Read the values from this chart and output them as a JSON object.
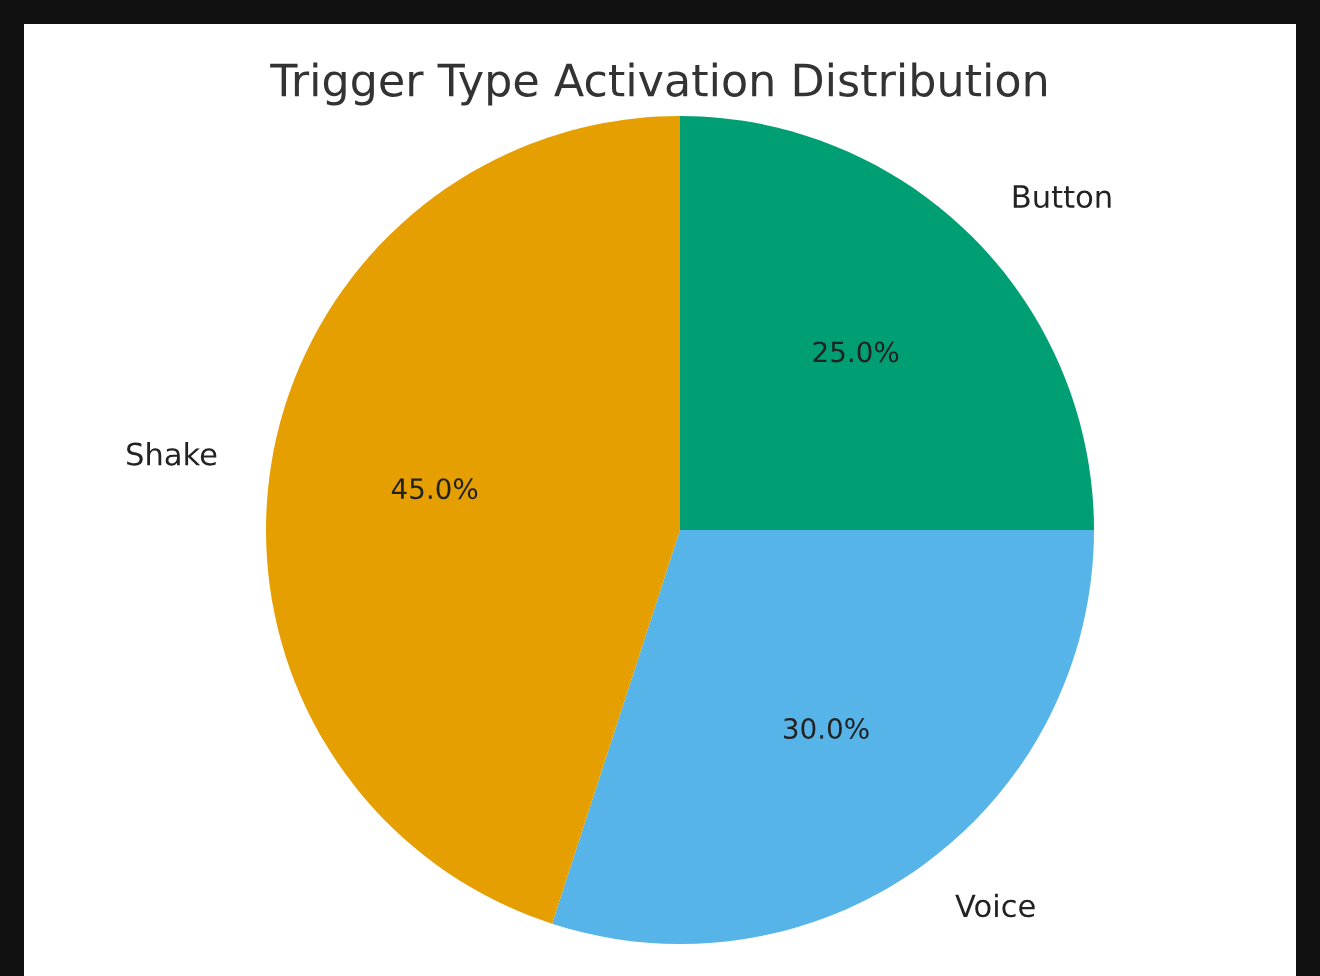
{
  "chart_data": {
    "type": "pie",
    "title": "Trigger Type Activation Distribution",
    "categories": [
      "Button",
      "Voice",
      "Shake"
    ],
    "values": [
      25,
      30,
      45
    ],
    "colors": [
      "#009e73",
      "#56b4e9",
      "#e69f00"
    ],
    "value_labels": [
      "25.0%",
      "30.0%",
      "45.0%"
    ]
  }
}
